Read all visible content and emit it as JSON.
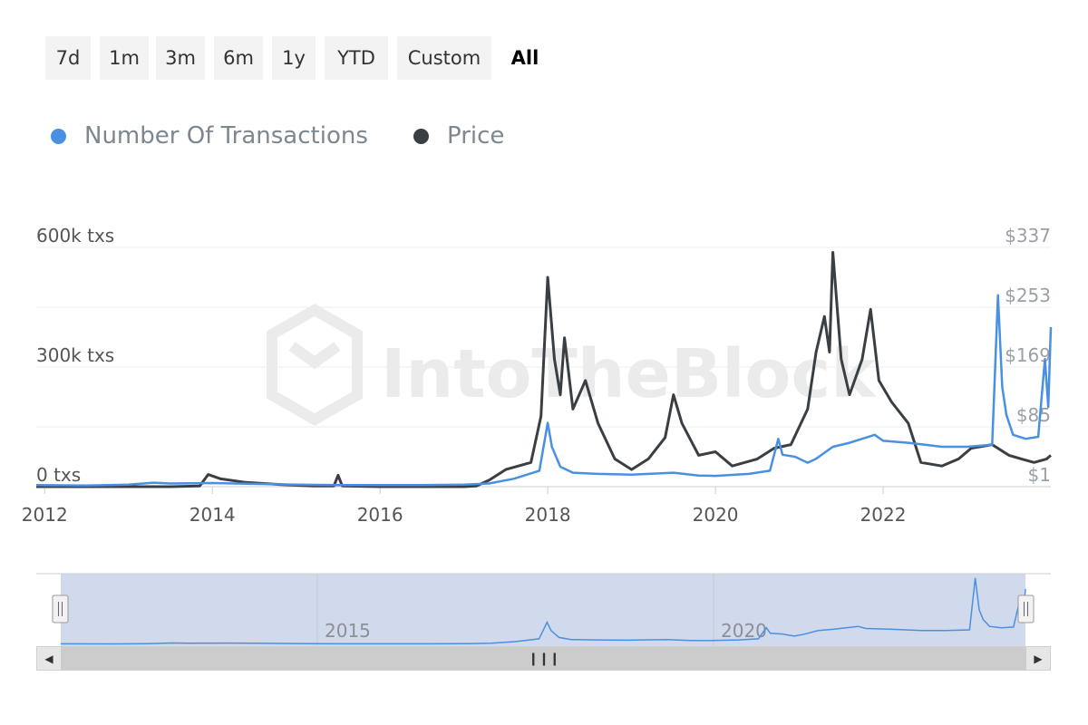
{
  "range_selector": {
    "buttons": [
      "7d",
      "1m",
      "3m",
      "6m",
      "1y",
      "YTD",
      "Custom",
      "All"
    ],
    "active": "All"
  },
  "legend": {
    "items": [
      {
        "label": "Number Of Transactions",
        "color": "#4a90e2"
      },
      {
        "label": "Price",
        "color": "#3a3f44"
      }
    ]
  },
  "watermark": "IntoTheBlock",
  "chart_data": {
    "type": "line",
    "grid": true,
    "x_range": [
      2011.9,
      2024.0
    ],
    "x_ticks": [
      "2012",
      "2014",
      "2016",
      "2018",
      "2020",
      "2022"
    ],
    "y_left": {
      "ticks": [
        "0 txs",
        "300k txs",
        "600k txs"
      ],
      "range": [
        0,
        600000
      ]
    },
    "y_right": {
      "ticks": [
        "$1",
        "$85",
        "$169",
        "$253",
        "$337"
      ],
      "range": [
        1,
        337
      ]
    },
    "series": [
      {
        "name": "Number Of Transactions",
        "axis": "left",
        "color": "#4a90e2",
        "points": [
          [
            2011.9,
            4000
          ],
          [
            2012.5,
            3000
          ],
          [
            2013.0,
            5000
          ],
          [
            2013.3,
            10000
          ],
          [
            2013.5,
            8000
          ],
          [
            2014.0,
            9000
          ],
          [
            2014.5,
            7000
          ],
          [
            2015.0,
            5000
          ],
          [
            2015.5,
            4000
          ],
          [
            2016.0,
            4000
          ],
          [
            2016.5,
            4000
          ],
          [
            2017.0,
            5000
          ],
          [
            2017.3,
            8000
          ],
          [
            2017.6,
            20000
          ],
          [
            2017.9,
            40000
          ],
          [
            2018.0,
            160000
          ],
          [
            2018.05,
            100000
          ],
          [
            2018.15,
            50000
          ],
          [
            2018.3,
            35000
          ],
          [
            2018.6,
            32000
          ],
          [
            2019.0,
            30000
          ],
          [
            2019.5,
            35000
          ],
          [
            2019.8,
            28000
          ],
          [
            2020.0,
            27000
          ],
          [
            2020.4,
            32000
          ],
          [
            2020.65,
            40000
          ],
          [
            2020.75,
            120000
          ],
          [
            2020.8,
            80000
          ],
          [
            2020.95,
            75000
          ],
          [
            2021.1,
            60000
          ],
          [
            2021.2,
            70000
          ],
          [
            2021.4,
            100000
          ],
          [
            2021.6,
            110000
          ],
          [
            2021.9,
            130000
          ],
          [
            2022.0,
            115000
          ],
          [
            2022.3,
            110000
          ],
          [
            2022.5,
            105000
          ],
          [
            2022.7,
            100000
          ],
          [
            2023.0,
            100000
          ],
          [
            2023.3,
            105000
          ],
          [
            2023.37,
            480000
          ],
          [
            2023.42,
            250000
          ],
          [
            2023.47,
            180000
          ],
          [
            2023.55,
            130000
          ],
          [
            2023.7,
            120000
          ],
          [
            2023.85,
            125000
          ],
          [
            2023.93,
            320000
          ],
          [
            2023.97,
            200000
          ],
          [
            2024.0,
            400000
          ]
        ]
      },
      {
        "name": "Price",
        "axis": "right",
        "color": "#3a3f44",
        "points": [
          [
            2011.9,
            1
          ],
          [
            2012.5,
            1
          ],
          [
            2013.0,
            1
          ],
          [
            2013.5,
            1
          ],
          [
            2013.85,
            2
          ],
          [
            2013.95,
            18
          ],
          [
            2014.1,
            12
          ],
          [
            2014.4,
            7
          ],
          [
            2014.8,
            4
          ],
          [
            2015.2,
            2
          ],
          [
            2015.45,
            2
          ],
          [
            2015.5,
            17
          ],
          [
            2015.55,
            2
          ],
          [
            2016.0,
            1
          ],
          [
            2016.5,
            1
          ],
          [
            2017.0,
            1
          ],
          [
            2017.15,
            2
          ],
          [
            2017.3,
            10
          ],
          [
            2017.5,
            25
          ],
          [
            2017.8,
            35
          ],
          [
            2017.92,
            100
          ],
          [
            2018.0,
            295
          ],
          [
            2018.08,
            180
          ],
          [
            2018.15,
            130
          ],
          [
            2018.2,
            210
          ],
          [
            2018.3,
            110
          ],
          [
            2018.45,
            150
          ],
          [
            2018.6,
            90
          ],
          [
            2018.8,
            40
          ],
          [
            2019.0,
            25
          ],
          [
            2019.2,
            40
          ],
          [
            2019.4,
            70
          ],
          [
            2019.5,
            130
          ],
          [
            2019.6,
            90
          ],
          [
            2019.8,
            45
          ],
          [
            2020.0,
            50
          ],
          [
            2020.2,
            30
          ],
          [
            2020.5,
            40
          ],
          [
            2020.7,
            55
          ],
          [
            2020.9,
            60
          ],
          [
            2021.1,
            110
          ],
          [
            2021.2,
            190
          ],
          [
            2021.3,
            240
          ],
          [
            2021.36,
            190
          ],
          [
            2021.4,
            330
          ],
          [
            2021.5,
            180
          ],
          [
            2021.6,
            130
          ],
          [
            2021.75,
            180
          ],
          [
            2021.85,
            250
          ],
          [
            2021.95,
            150
          ],
          [
            2022.1,
            120
          ],
          [
            2022.3,
            90
          ],
          [
            2022.45,
            35
          ],
          [
            2022.7,
            30
          ],
          [
            2022.9,
            40
          ],
          [
            2023.05,
            55
          ],
          [
            2023.3,
            60
          ],
          [
            2023.5,
            45
          ],
          [
            2023.65,
            40
          ],
          [
            2023.8,
            35
          ],
          [
            2023.95,
            40
          ],
          [
            2024.0,
            45
          ]
        ]
      }
    ]
  },
  "navigator": {
    "tick_labels": [
      "2015",
      "2020"
    ]
  }
}
